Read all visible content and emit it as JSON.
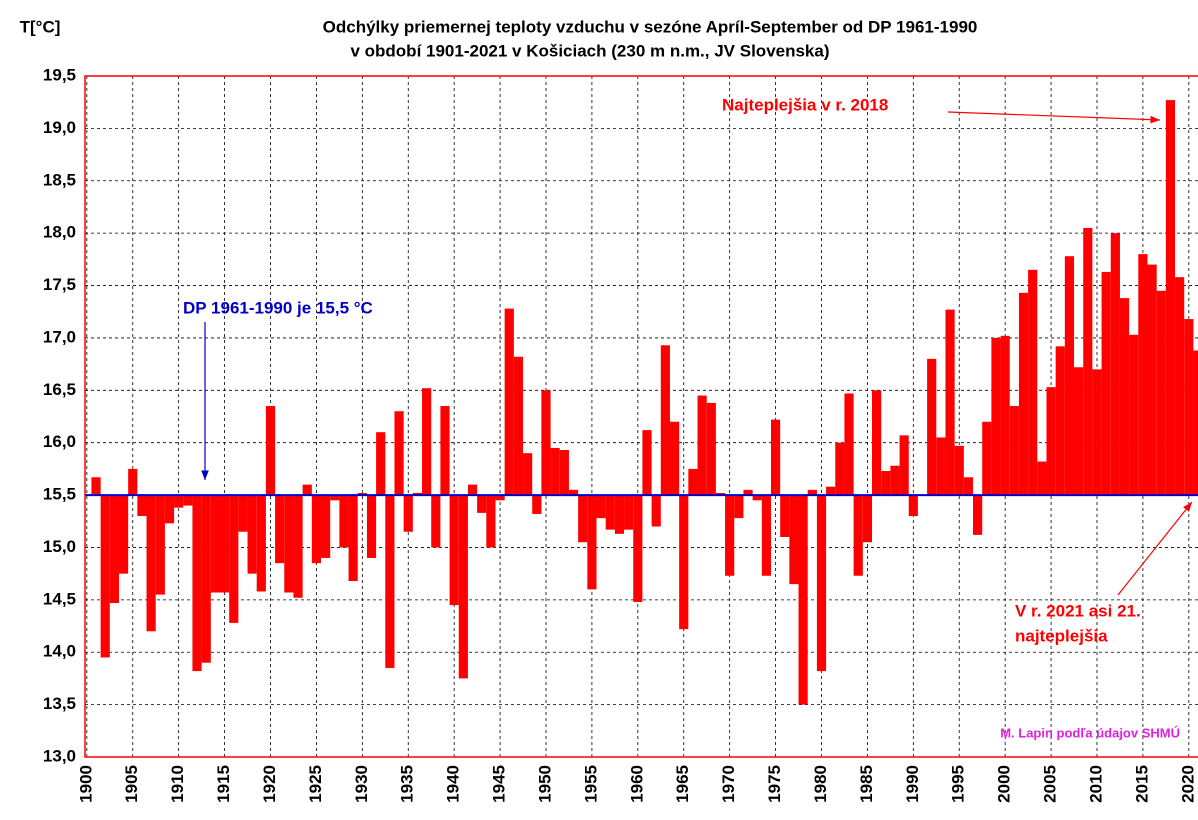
{
  "chart_data": {
    "type": "bar",
    "title": "Odchýlky priemernej teploty vzduchu v sezóne Apríl-September od DP 1961-1990",
    "subtitle": "v období 1901-2021 v Košiciach  (230 m n.m., JV Slovenska)",
    "y_label": "T[°C]",
    "baseline": 15.5,
    "baseline_label": "DP 1961-1990 je 15,5 °C",
    "annotations": [
      "Najteplejšia v r. 2018",
      "V r. 2021 asi 21.",
      "najteplejšia"
    ],
    "credit": "M. Lapin podľa údajov SHMÚ",
    "color": "#ff0000",
    "baseline_color": "#0000cc",
    "grid": true,
    "x": [
      1901,
      1902,
      1903,
      1904,
      1905,
      1906,
      1907,
      1908,
      1909,
      1910,
      1911,
      1912,
      1913,
      1914,
      1915,
      1916,
      1917,
      1918,
      1919,
      1920,
      1921,
      1922,
      1923,
      1924,
      1925,
      1926,
      1927,
      1928,
      1929,
      1930,
      1931,
      1932,
      1933,
      1934,
      1935,
      1936,
      1937,
      1938,
      1939,
      1940,
      1941,
      1942,
      1943,
      1944,
      1945,
      1946,
      1947,
      1948,
      1949,
      1950,
      1951,
      1952,
      1953,
      1954,
      1955,
      1956,
      1957,
      1958,
      1959,
      1960,
      1961,
      1962,
      1963,
      1964,
      1965,
      1966,
      1967,
      1968,
      1969,
      1970,
      1971,
      1972,
      1973,
      1974,
      1975,
      1976,
      1977,
      1978,
      1979,
      1980,
      1981,
      1982,
      1983,
      1984,
      1985,
      1986,
      1987,
      1988,
      1989,
      1990,
      1991,
      1992,
      1993,
      1994,
      1995,
      1996,
      1997,
      1998,
      1999,
      2000,
      2001,
      2002,
      2003,
      2004,
      2005,
      2006,
      2007,
      2008,
      2009,
      2010,
      2011,
      2012,
      2013,
      2014,
      2015,
      2016,
      2017,
      2018,
      2019,
      2020,
      2021
    ],
    "values": [
      15.67,
      13.95,
      14.47,
      14.75,
      15.75,
      15.3,
      14.2,
      14.55,
      15.23,
      15.38,
      15.4,
      13.82,
      13.9,
      14.57,
      14.57,
      14.28,
      15.15,
      14.75,
      14.58,
      16.35,
      14.85,
      14.57,
      14.52,
      15.6,
      14.85,
      14.9,
      15.45,
      15.0,
      14.68,
      15.52,
      14.9,
      16.1,
      13.85,
      16.3,
      15.15,
      15.52,
      16.52,
      15.0,
      16.35,
      14.45,
      13.75,
      15.6,
      15.33,
      15.0,
      15.45,
      17.28,
      16.82,
      15.9,
      15.32,
      16.5,
      15.95,
      15.93,
      15.55,
      15.05,
      14.6,
      15.28,
      15.17,
      15.13,
      15.17,
      14.48,
      16.12,
      15.2,
      16.93,
      16.2,
      14.22,
      15.75,
      16.45,
      16.38,
      15.52,
      14.73,
      15.28,
      15.55,
      15.45,
      14.73,
      16.22,
      15.1,
      14.65,
      13.5,
      15.55,
      13.82,
      15.58,
      16.0,
      16.47,
      14.73,
      15.05,
      16.5,
      15.73,
      15.78,
      16.07,
      15.3,
      15.5,
      16.8,
      16.05,
      17.27,
      15.97,
      15.67,
      15.12,
      16.2,
      17.0,
      17.02,
      16.35,
      17.43,
      17.65,
      15.82,
      16.53,
      16.92,
      17.78,
      16.72,
      18.05,
      16.7,
      17.63,
      18.0,
      17.38,
      17.03,
      17.8,
      17.7,
      17.45,
      19.27,
      17.58,
      17.18,
      16.88
    ],
    "xlim": [
      1899.8,
      2021
    ],
    "xticks": [
      1900,
      1905,
      1910,
      1915,
      1920,
      1925,
      1930,
      1935,
      1940,
      1945,
      1950,
      1955,
      1960,
      1965,
      1970,
      1975,
      1980,
      1985,
      1990,
      1995,
      2000,
      2005,
      2010,
      2015,
      2020
    ],
    "ylim": [
      13,
      19.5
    ],
    "yticks": [
      {
        "value": 13,
        "label": "13,0"
      },
      {
        "value": 13.5,
        "label": "13,5"
      },
      {
        "value": 14,
        "label": "14,0"
      },
      {
        "value": 14.5,
        "label": "14,5"
      },
      {
        "value": 15,
        "label": "15,0"
      },
      {
        "value": 15.5,
        "label": "15,5"
      },
      {
        "value": 16,
        "label": "16,0"
      },
      {
        "value": 16.5,
        "label": "16,5"
      },
      {
        "value": 17,
        "label": "17,0"
      },
      {
        "value": 17.5,
        "label": "17,5"
      },
      {
        "value": 18,
        "label": "18,0"
      },
      {
        "value": 18.5,
        "label": "18,5"
      },
      {
        "value": 19,
        "label": "19,0"
      },
      {
        "value": 19.5,
        "label": "19,5"
      }
    ]
  }
}
